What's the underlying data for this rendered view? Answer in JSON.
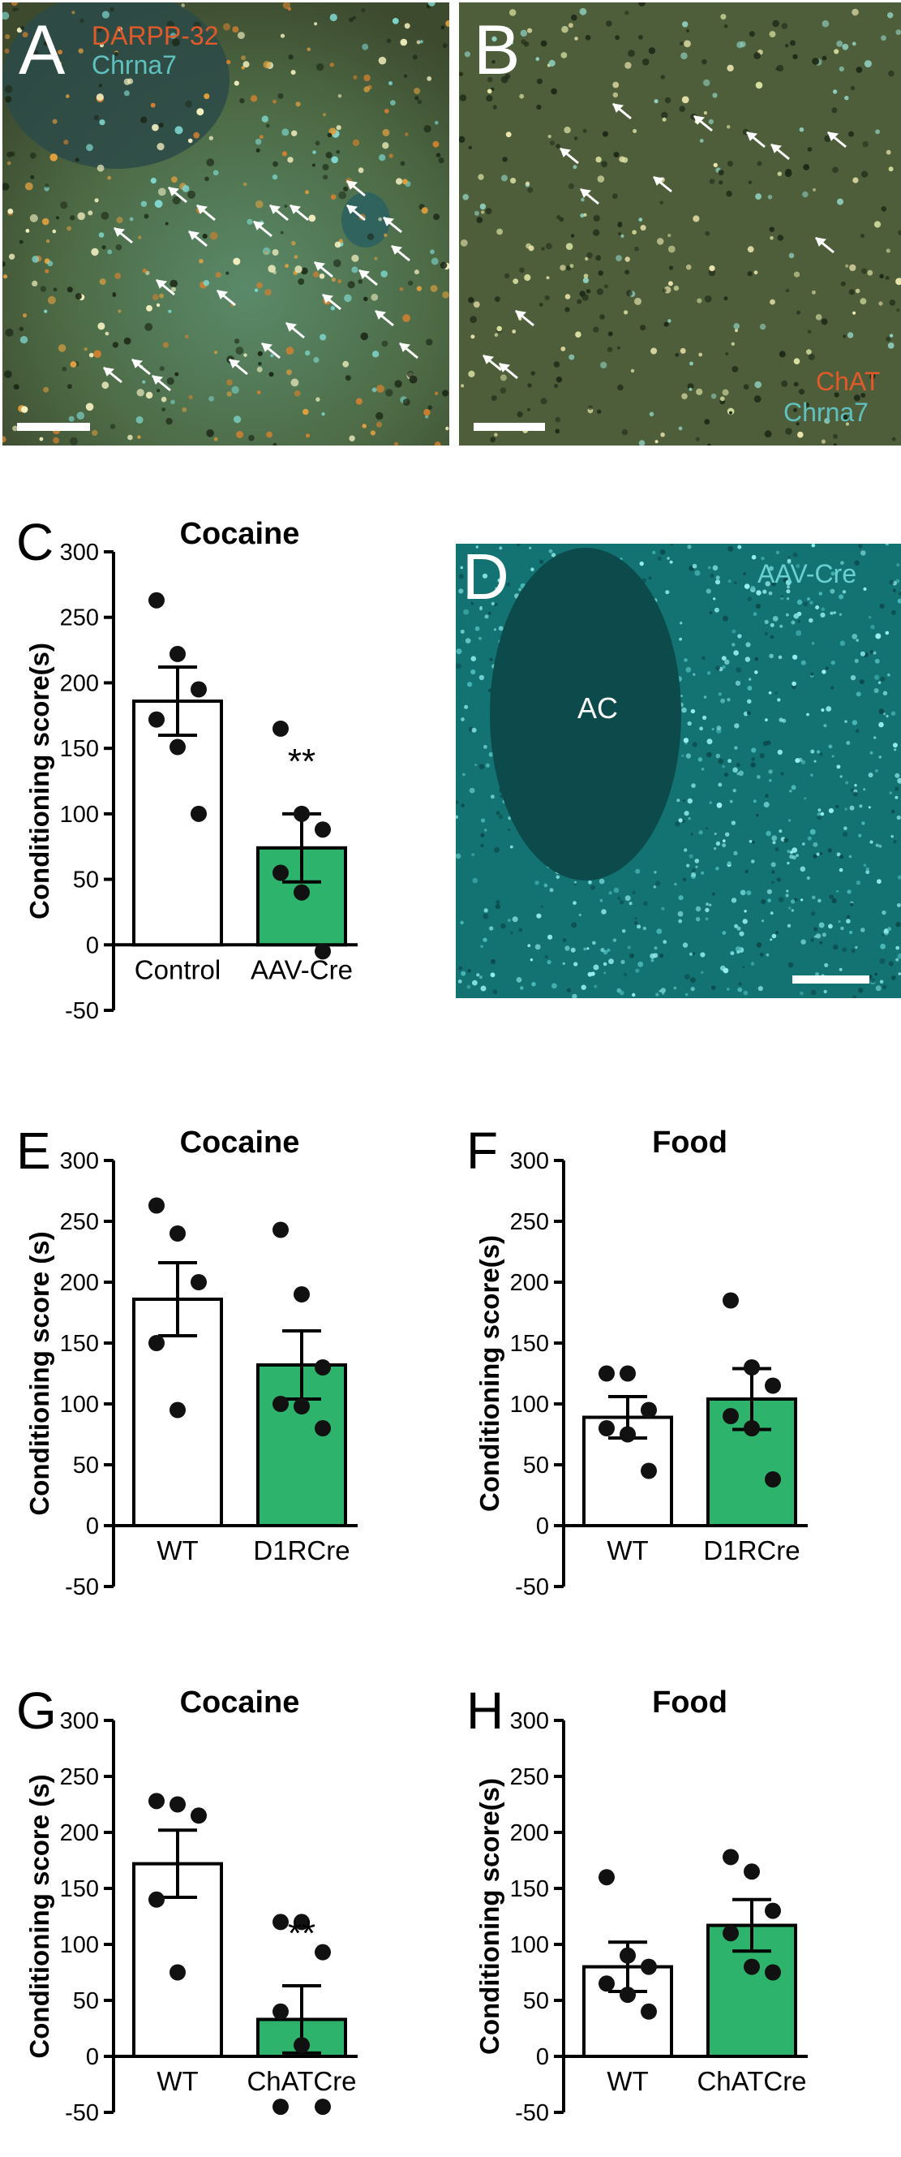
{
  "images": [
    {
      "id": "A",
      "label": "A",
      "channels": [
        "DARPP-32",
        "Chrna7"
      ],
      "channel_colors": [
        "#e05a2a",
        "#5fc0c0"
      ],
      "background": "#4a6040"
    },
    {
      "id": "B",
      "label": "B",
      "channels": [
        "ChAT",
        "Chrna7"
      ],
      "channel_colors": [
        "#e05a2a",
        "#5fc0c0"
      ],
      "background": "#4a5a38"
    },
    {
      "id": "D",
      "label": "D",
      "channels": [
        "AAV-Cre"
      ],
      "channel_colors": [
        "#6ad0d0"
      ],
      "background": "#127070",
      "region": "AC"
    }
  ],
  "chart_data": [
    {
      "id": "C",
      "panel": "C",
      "type": "bar",
      "title": "Cocaine",
      "ylabel": "Conditioning score(s)",
      "categories": [
        "Control",
        "AAV-Cre"
      ],
      "values": [
        186,
        74
      ],
      "sem": [
        26,
        26
      ],
      "ylim": [
        -50,
        300
      ],
      "yticks": [
        -50,
        0,
        50,
        100,
        150,
        200,
        250,
        300
      ],
      "points": [
        [
          263,
          222,
          195,
          172,
          151,
          100
        ],
        [
          165,
          100,
          88,
          55,
          40,
          -5
        ]
      ],
      "significance": [
        "",
        "**"
      ],
      "bar_colors": [
        "#ffffff",
        "#2db36b"
      ]
    },
    {
      "id": "E",
      "panel": "E",
      "type": "bar",
      "title": "Cocaine",
      "ylabel": "Conditioning score (s)",
      "categories": [
        "WT",
        "D1RCre"
      ],
      "values": [
        186,
        132
      ],
      "sem": [
        30,
        28
      ],
      "ylim": [
        -50,
        300
      ],
      "yticks": [
        -50,
        0,
        50,
        100,
        150,
        200,
        250,
        300
      ],
      "points": [
        [
          263,
          240,
          200,
          150,
          95
        ],
        [
          243,
          190,
          130,
          100,
          98,
          80
        ]
      ],
      "significance": [
        "",
        ""
      ],
      "bar_colors": [
        "#ffffff",
        "#2db36b"
      ]
    },
    {
      "id": "F",
      "panel": "F",
      "type": "bar",
      "title": "Food",
      "ylabel": "Conditioning score(s)",
      "categories": [
        "WT",
        "D1RCre"
      ],
      "values": [
        89,
        104
      ],
      "sem": [
        17,
        25
      ],
      "ylim": [
        -50,
        300
      ],
      "yticks": [
        -50,
        0,
        50,
        100,
        150,
        200,
        250,
        300
      ],
      "points": [
        [
          125,
          125,
          95,
          80,
          75,
          45
        ],
        [
          185,
          130,
          115,
          90,
          80,
          38
        ]
      ],
      "significance": [
        "",
        ""
      ],
      "bar_colors": [
        "#ffffff",
        "#2db36b"
      ]
    },
    {
      "id": "G",
      "panel": "G",
      "type": "bar",
      "title": "Cocaine",
      "ylabel": "Conditioning score (s)",
      "categories": [
        "WT",
        "ChATCre"
      ],
      "values": [
        172,
        33
      ],
      "sem": [
        30,
        30
      ],
      "ylim": [
        -50,
        300
      ],
      "yticks": [
        -50,
        0,
        50,
        100,
        150,
        200,
        250,
        300
      ],
      "points": [
        [
          228,
          225,
          215,
          140,
          75
        ],
        [
          120,
          120,
          93,
          40,
          10,
          -45,
          -45
        ]
      ],
      "significance": [
        "",
        "**"
      ],
      "bar_colors": [
        "#ffffff",
        "#2db36b"
      ]
    },
    {
      "id": "H",
      "panel": "H",
      "type": "bar",
      "title": "Food",
      "ylabel": "Conditioning score(s)",
      "categories": [
        "WT",
        "ChATCre"
      ],
      "values": [
        80,
        117
      ],
      "sem": [
        22,
        23
      ],
      "ylim": [
        -50,
        300
      ],
      "yticks": [
        -50,
        0,
        50,
        100,
        150,
        200,
        250,
        300
      ],
      "points": [
        [
          160,
          90,
          80,
          65,
          55,
          40
        ],
        [
          178,
          165,
          130,
          110,
          80,
          75
        ]
      ],
      "significance": [
        "",
        ""
      ],
      "bar_colors": [
        "#ffffff",
        "#2db36b"
      ]
    }
  ]
}
